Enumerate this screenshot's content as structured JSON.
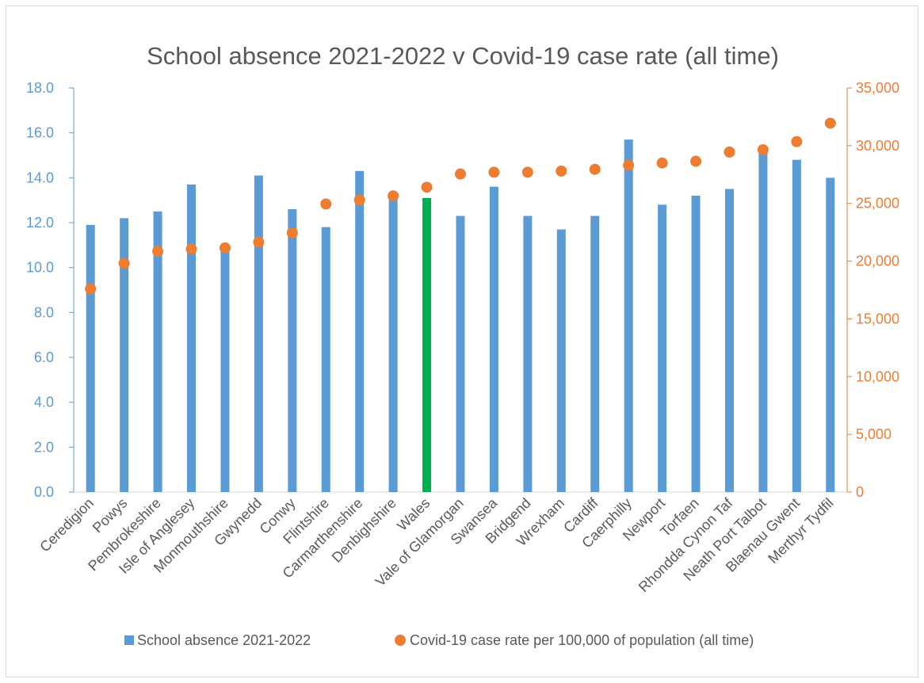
{
  "chart_data": {
    "type": "bar",
    "title": "School absence 2021-2022 v Covid-19 case rate (all time)",
    "categories": [
      "Ceredigion",
      "Powys",
      "Pembrokeshire",
      "Isle of Anglesey",
      "Monmouthshire",
      "Gwynedd",
      "Conwy",
      "Flintshire",
      "Carmarthenshire",
      "Denbighshire",
      "Wales",
      "Vale of Glamorgan",
      "Swansea",
      "Bridgend",
      "Wrexham",
      "Cardiff",
      "Caerphilly",
      "Newport",
      "Torfaen",
      "Rhondda Cynon Taf",
      "Neath Port Talbot",
      "Blaenau Gwent",
      "Merthyr Tydfil"
    ],
    "series": [
      {
        "name": "School absence 2021-2022",
        "chart_type": "bar",
        "axis": "left",
        "color": "#5b9bd5",
        "highlight": {
          "category": "Wales",
          "color": "#00b050"
        },
        "values": [
          11.9,
          12.2,
          12.5,
          13.7,
          10.9,
          14.1,
          12.6,
          11.8,
          14.3,
          13.3,
          13.1,
          12.3,
          13.6,
          12.3,
          11.7,
          12.3,
          15.7,
          12.8,
          13.2,
          13.5,
          15.3,
          14.8,
          14.0
        ]
      },
      {
        "name": "Covid-19 case rate per 100,000 of population (all time)",
        "chart_type": "scatter",
        "axis": "right",
        "color": "#ed7d31",
        "values": [
          17600,
          19800,
          20850,
          21050,
          21150,
          21650,
          22450,
          24950,
          25300,
          25650,
          26400,
          27550,
          27700,
          27700,
          27800,
          27950,
          28300,
          28500,
          28650,
          29450,
          29650,
          30350,
          31950
        ]
      }
    ],
    "y_left": {
      "min": 0,
      "max": 18,
      "step": 2,
      "tick_labels": [
        "0.0",
        "2.0",
        "4.0",
        "6.0",
        "8.0",
        "10.0",
        "12.0",
        "14.0",
        "16.0",
        "18.0"
      ]
    },
    "y_right": {
      "min": 0,
      "max": 35000,
      "step": 5000,
      "tick_labels": [
        "0",
        "5,000",
        "10,000",
        "15,000",
        "20,000",
        "25,000",
        "30,000",
        "35,000"
      ]
    },
    "grid": false,
    "legend_position": "bottom"
  }
}
